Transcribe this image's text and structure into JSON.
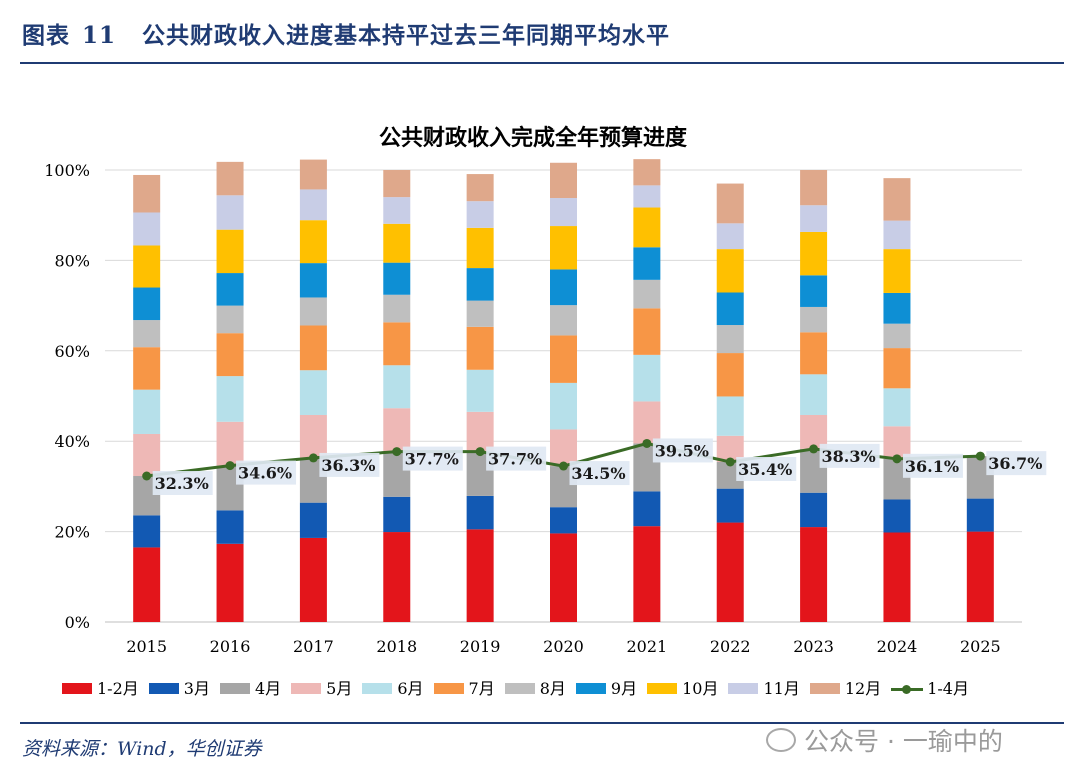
{
  "header": {
    "prefix": "图表",
    "number": "11",
    "title": "公共财政收入进度基本持平过去三年同期平均水平"
  },
  "source": "资料来源：Wind，华创证券",
  "watermark": "公众号 · 一瑜中的",
  "colors": {
    "1-2月": "#e3151b",
    "3月": "#1259b3",
    "4月": "#a6a6a6",
    "5月": "#eeb8b6",
    "6月": "#b6e0ea",
    "7月": "#f79646",
    "8月": "#bfbfbf",
    "9月": "#0e8fd4",
    "10月": "#ffc000",
    "11月": "#c8cde6",
    "12月": "#dfa88b",
    "1-4月": "#3a6b26"
  },
  "chart_data": {
    "type": "bar",
    "stacked": true,
    "title": "公共财政收入完成全年预算进度",
    "categories": [
      "2015",
      "2016",
      "2017",
      "2018",
      "2019",
      "2020",
      "2021",
      "2022",
      "2023",
      "2024",
      "2025"
    ],
    "ylim": [
      0,
      100
    ],
    "yticks": [
      "0%",
      "20%",
      "40%",
      "60%",
      "80%",
      "100%"
    ],
    "grid": true,
    "legend_position": "bottom",
    "series": [
      {
        "name": "1-2月",
        "values": [
          16.5,
          17.3,
          18.6,
          19.9,
          20.5,
          19.6,
          21.2,
          22.0,
          21.0,
          19.8,
          20.0
        ]
      },
      {
        "name": "3月",
        "values": [
          7.1,
          7.4,
          7.8,
          7.8,
          7.4,
          5.8,
          7.7,
          7.5,
          7.6,
          7.3,
          7.3
        ]
      },
      {
        "name": "4月",
        "values": [
          8.7,
          9.9,
          9.9,
          10.0,
          9.8,
          9.1,
          10.6,
          5.9,
          9.7,
          9.0,
          9.4
        ]
      },
      {
        "name": "5月",
        "values": [
          9.3,
          9.7,
          9.5,
          9.6,
          8.8,
          8.1,
          9.3,
          5.8,
          7.5,
          7.2,
          null
        ]
      },
      {
        "name": "6月",
        "values": [
          9.8,
          10.1,
          9.9,
          9.5,
          9.3,
          10.3,
          10.3,
          8.7,
          9.0,
          8.4,
          null
        ]
      },
      {
        "name": "7月",
        "values": [
          9.4,
          9.5,
          9.9,
          9.5,
          9.5,
          10.5,
          10.3,
          9.6,
          9.3,
          8.9,
          null
        ]
      },
      {
        "name": "8月",
        "values": [
          6.0,
          6.1,
          6.2,
          6.1,
          5.8,
          6.7,
          6.3,
          6.2,
          5.6,
          5.4,
          null
        ]
      },
      {
        "name": "9月",
        "values": [
          7.2,
          7.2,
          7.6,
          7.1,
          7.2,
          7.9,
          7.2,
          7.2,
          7.0,
          6.8,
          null
        ]
      },
      {
        "name": "10月",
        "values": [
          9.3,
          9.6,
          9.5,
          8.6,
          8.9,
          9.6,
          8.8,
          9.6,
          9.6,
          9.7,
          null
        ]
      },
      {
        "name": "11月",
        "values": [
          7.3,
          7.6,
          6.8,
          5.9,
          5.9,
          6.2,
          4.9,
          5.7,
          5.9,
          6.3,
          null
        ]
      },
      {
        "name": "12月",
        "values": [
          8.3,
          7.4,
          6.6,
          6.0,
          6.0,
          7.8,
          5.8,
          8.8,
          7.8,
          9.4,
          null
        ]
      }
    ],
    "line_series": {
      "name": "1-4月",
      "values": [
        32.3,
        34.6,
        36.3,
        37.7,
        37.7,
        34.5,
        39.5,
        35.4,
        38.3,
        36.1,
        36.7
      ],
      "labels": [
        "32.3%",
        "34.6%",
        "36.3%",
        "37.7%",
        "37.7%",
        "34.5%",
        "39.5%",
        "35.4%",
        "38.3%",
        "36.1%",
        "36.7%"
      ]
    }
  }
}
